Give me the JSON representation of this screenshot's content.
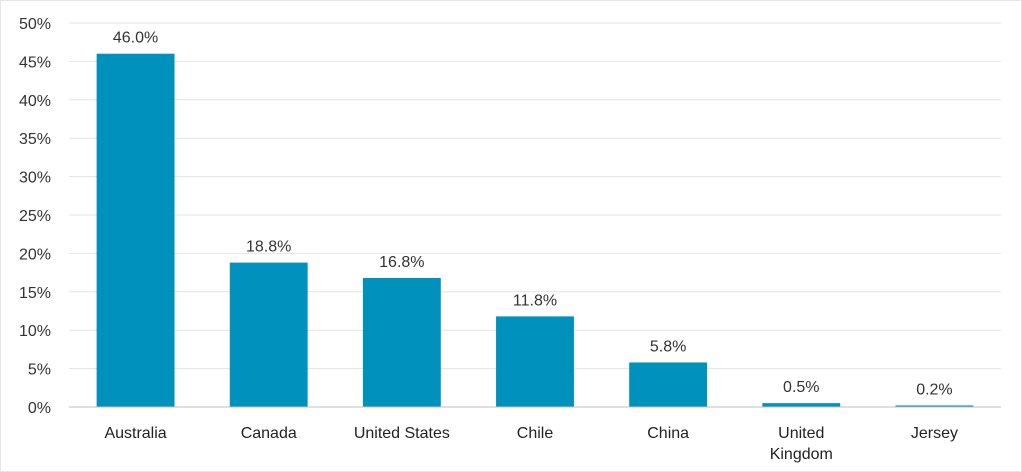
{
  "chart_data": {
    "type": "bar",
    "categories": [
      "Australia",
      "Canada",
      "United States",
      "Chile",
      "China",
      "United Kingdom",
      "Jersey"
    ],
    "category_lines": [
      [
        "Australia"
      ],
      [
        "Canada"
      ],
      [
        "United States"
      ],
      [
        "Chile"
      ],
      [
        "China"
      ],
      [
        "United",
        "Kingdom"
      ],
      [
        "Jersey"
      ]
    ],
    "values": [
      46.0,
      18.8,
      16.8,
      11.8,
      5.8,
      0.5,
      0.2
    ],
    "data_labels": [
      "46.0%",
      "18.8%",
      "16.8%",
      "11.8%",
      "5.8%",
      "0.5%",
      "0.2%"
    ],
    "y_ticks": [
      0,
      5,
      10,
      15,
      20,
      25,
      30,
      35,
      40,
      45,
      50
    ],
    "y_tick_labels": [
      "0%",
      "5%",
      "10%",
      "15%",
      "20%",
      "25%",
      "30%",
      "35%",
      "40%",
      "45%",
      "50%"
    ],
    "ylim": [
      0,
      50
    ],
    "grid": true,
    "legend": "none",
    "bar_color": "#0092BC",
    "title": "",
    "xlabel": "",
    "ylabel": ""
  }
}
